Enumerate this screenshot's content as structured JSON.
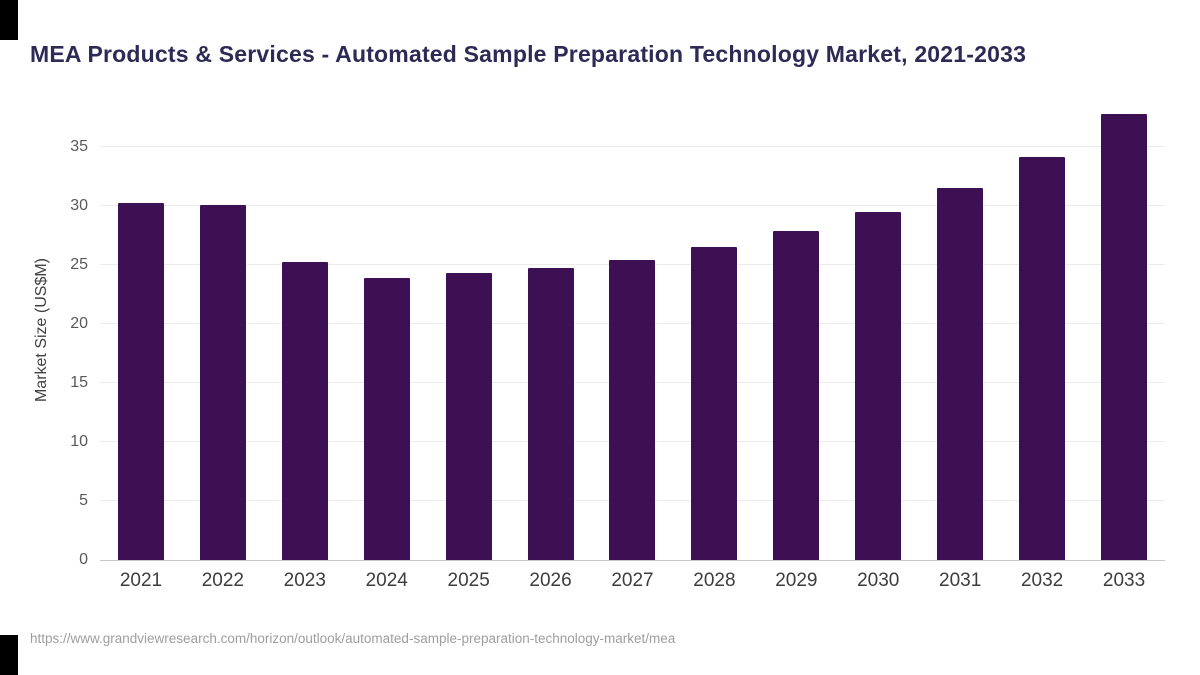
{
  "page": {
    "title": "MEA Products & Services - Automated Sample Preparation Technology Market, 2021-2033",
    "source_url": "https://www.grandviewresearch.com/horizon/outlook/automated-sample-preparation-technology-market/mea"
  },
  "chart_data": {
    "type": "bar",
    "title": "MEA Products & Services - Automated Sample Preparation Technology Market, 2021-2033",
    "categories": [
      "2021",
      "2022",
      "2023",
      "2024",
      "2025",
      "2026",
      "2027",
      "2028",
      "2029",
      "2030",
      "2031",
      "2032",
      "2033"
    ],
    "values": [
      30.3,
      30.1,
      25.3,
      23.9,
      24.3,
      24.8,
      25.4,
      26.5,
      27.9,
      29.5,
      31.5,
      34.2,
      37.8
    ],
    "xlabel": "",
    "ylabel": "Market Size (US$M)",
    "ylim": [
      0,
      39
    ],
    "yticks": [
      0,
      5,
      10,
      15,
      20,
      25,
      30,
      35
    ],
    "grid": "horizontal",
    "legend": "none",
    "bar_color": "#3c1053"
  },
  "colors": {
    "title": "#2d2a55",
    "bar": "#3c1053",
    "axis_text": "#595959",
    "gridline": "#ececec",
    "baseline": "#c9c9c9",
    "source_text": "#9e9e9e",
    "corner_mark": "#000000"
  }
}
